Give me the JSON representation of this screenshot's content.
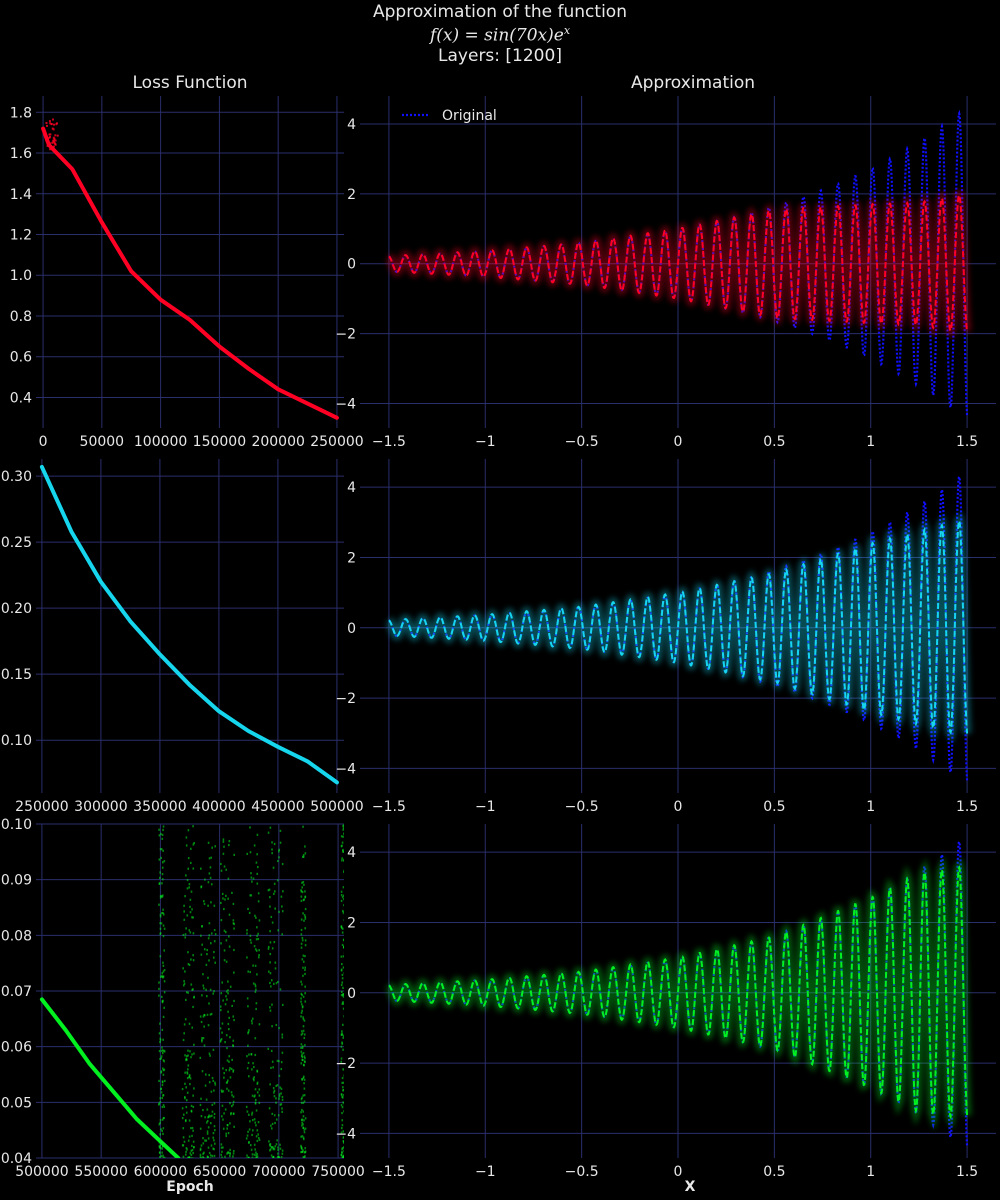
{
  "figure": {
    "title_line1": "Approximation of the function",
    "title_formula_f": "f",
    "title_formula_mid": "(x) = sin(70x)e",
    "title_formula_sup": "x",
    "title_line3": "Layers: [1200]",
    "col_titles": [
      "Loss Function",
      "Approximation"
    ],
    "xlabel_left": "Epoch",
    "xlabel_right": "X",
    "colors": {
      "background": "#000000",
      "grid": "#2a2e6b",
      "text": "#e8e8e8",
      "original": "#1010ff",
      "row1": "#ff0024",
      "row2": "#16d6ee",
      "row3": "#00f020"
    }
  },
  "chart_data": [
    {
      "type": "line",
      "title": "Loss Function",
      "xlabel": "",
      "ylabel": "",
      "xlim": [
        -6000,
        256000
      ],
      "ylim": [
        0.25,
        1.88
      ],
      "xticks": [
        0,
        50000,
        100000,
        150000,
        200000,
        250000
      ],
      "yticks": [
        0.4,
        0.6,
        0.8,
        1.0,
        1.2,
        1.4,
        1.6,
        1.8
      ],
      "series": [
        {
          "name": "Loss",
          "color": "#ff0024",
          "x": [
            0,
            5000,
            10000,
            25000,
            50000,
            75000,
            100000,
            125000,
            150000,
            175000,
            200000,
            225000,
            250000
          ],
          "values": [
            1.72,
            1.64,
            1.61,
            1.52,
            1.26,
            1.02,
            0.88,
            0.78,
            0.65,
            0.54,
            0.44,
            0.37,
            0.3
          ]
        }
      ]
    },
    {
      "type": "line",
      "title": "Approximation",
      "xlabel": "",
      "ylabel": "",
      "xlim": [
        -1.65,
        1.65
      ],
      "ylim": [
        -4.7,
        4.8
      ],
      "xticks": [
        -1.5,
        -1.0,
        -0.5,
        0.0,
        0.5,
        1.0,
        1.5
      ],
      "yticks": [
        -4,
        -2,
        0,
        2,
        4
      ],
      "legend": {
        "placement": "top-left",
        "entries": [
          "Original"
        ]
      },
      "series": [
        {
          "name": "Original",
          "function": "sin(70x)e^x",
          "style": "dotted",
          "color": "#1010ff",
          "x_range": [
            -1.5,
            1.5
          ]
        },
        {
          "name": "Approximation",
          "style": "dashed",
          "color": "#ff0024",
          "envelope_x": [
            -1.5,
            -1.0,
            -0.5,
            0.0,
            0.5,
            1.0,
            1.25,
            1.5
          ],
          "envelope_amplitude": [
            0.22,
            0.37,
            0.6,
            1.0,
            1.55,
            1.7,
            1.75,
            2.0
          ]
        }
      ]
    },
    {
      "type": "line",
      "title": "",
      "xlabel": "",
      "ylabel": "",
      "xlim": [
        245000,
        506000
      ],
      "ylim": [
        0.06,
        0.313
      ],
      "xticks": [
        250000,
        300000,
        350000,
        400000,
        450000,
        500000
      ],
      "yticks": [
        0.1,
        0.15,
        0.2,
        0.25,
        0.3
      ],
      "series": [
        {
          "name": "Loss",
          "color": "#16d6ee",
          "x": [
            250000,
            275000,
            300000,
            325000,
            350000,
            375000,
            400000,
            425000,
            450000,
            475000,
            500000
          ],
          "values": [
            0.307,
            0.258,
            0.22,
            0.19,
            0.165,
            0.142,
            0.122,
            0.107,
            0.095,
            0.084,
            0.068
          ]
        }
      ]
    },
    {
      "type": "line",
      "title": "",
      "xlabel": "",
      "ylabel": "",
      "xlim": [
        -1.65,
        1.65
      ],
      "ylim": [
        -4.7,
        4.8
      ],
      "xticks": [
        -1.5,
        -1.0,
        -0.5,
        0.0,
        0.5,
        1.0,
        1.5
      ],
      "yticks": [
        -4,
        -2,
        0,
        2,
        4
      ],
      "series": [
        {
          "name": "Original",
          "function": "sin(70x)e^x",
          "style": "dotted",
          "color": "#1010ff",
          "x_range": [
            -1.5,
            1.5
          ]
        },
        {
          "name": "Approximation",
          "style": "dashed",
          "color": "#16d6ee",
          "envelope_x": [
            -1.5,
            -1.0,
            -0.5,
            0.0,
            0.5,
            1.0,
            1.25,
            1.5
          ],
          "envelope_amplitude": [
            0.22,
            0.37,
            0.6,
            1.0,
            1.55,
            2.4,
            2.75,
            3.1
          ]
        }
      ]
    },
    {
      "type": "line",
      "title": "",
      "xlabel": "Epoch",
      "ylabel": "",
      "xlim": [
        495000,
        755000
      ],
      "ylim": [
        0.04,
        0.1
      ],
      "xticks": [
        500000,
        550000,
        600000,
        650000,
        700000,
        750000
      ],
      "yticks": [
        0.04,
        0.05,
        0.06,
        0.07,
        0.08,
        0.09,
        0.1
      ],
      "series": [
        {
          "name": "Loss",
          "color": "#00f020",
          "x": [
            500000,
            520000,
            540000,
            560000,
            580000,
            600000,
            615000
          ],
          "values": [
            0.0685,
            0.063,
            0.057,
            0.052,
            0.047,
            0.043,
            0.04
          ],
          "noise_bands_x": [
            [
              598000,
              603000
            ],
            [
              618000,
              628000
            ],
            [
              633000,
              646000
            ],
            [
              650000,
              662000
            ],
            [
              672000,
              683000
            ],
            [
              690000,
              703000
            ],
            [
              718000,
              722000
            ],
            [
              752000,
              755000
            ]
          ]
        }
      ]
    },
    {
      "type": "line",
      "title": "",
      "xlabel": "X",
      "ylabel": "",
      "xlim": [
        -1.65,
        1.65
      ],
      "ylim": [
        -4.7,
        4.8
      ],
      "xticks": [
        -1.5,
        -1.0,
        -0.5,
        0.0,
        0.5,
        1.0,
        1.5
      ],
      "yticks": [
        -4,
        -2,
        0,
        2,
        4
      ],
      "series": [
        {
          "name": "Original",
          "function": "sin(70x)e^x",
          "style": "dotted",
          "color": "#1010ff",
          "x_range": [
            -1.5,
            1.5
          ]
        },
        {
          "name": "Approximation",
          "style": "dashed",
          "color": "#00f020",
          "envelope_x": [
            -1.5,
            -1.0,
            -0.5,
            0.0,
            0.5,
            1.0,
            1.25,
            1.5
          ],
          "envelope_amplitude": [
            0.22,
            0.37,
            0.6,
            1.0,
            1.6,
            2.7,
            3.4,
            3.6
          ]
        }
      ]
    }
  ]
}
